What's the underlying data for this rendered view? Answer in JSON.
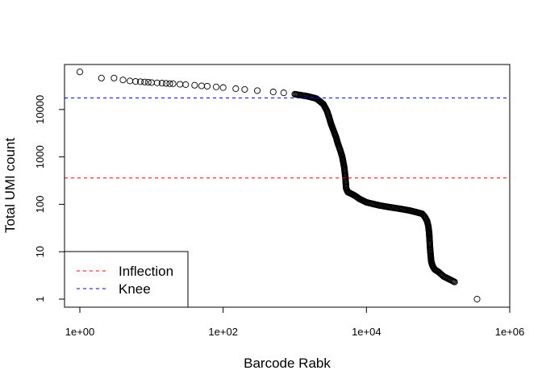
{
  "chart_data": {
    "type": "scatter",
    "xlabel": "Barcode Rabk",
    "ylabel": "Total UMI count",
    "x_scale": "log",
    "y_scale": "log",
    "xlim": [
      1,
      1000000
    ],
    "ylim": [
      0.75,
      100000
    ],
    "x_ticks": [
      1,
      100,
      10000,
      1000000
    ],
    "x_tick_labels": [
      "1e+00",
      "1e+02",
      "1e+04",
      "1e+06"
    ],
    "y_ticks": [
      1,
      10,
      100,
      1000,
      10000
    ],
    "y_tick_labels": [
      "1",
      "10",
      "100",
      "1000",
      "10000"
    ],
    "grid": false,
    "marker": "open-circle",
    "point_color": "#000000",
    "points": [
      [
        1,
        62000
      ],
      [
        2,
        46000
      ],
      [
        3,
        46000
      ],
      [
        4,
        42000
      ],
      [
        5,
        40000
      ],
      [
        6,
        39000
      ],
      [
        7,
        38500
      ],
      [
        8,
        38000
      ],
      [
        9,
        37500
      ],
      [
        10,
        37000
      ],
      [
        12,
        36500
      ],
      [
        14,
        36000
      ],
      [
        16,
        35500
      ],
      [
        18,
        35000
      ],
      [
        20,
        35000
      ],
      [
        25,
        34000
      ],
      [
        30,
        33500
      ],
      [
        40,
        32500
      ],
      [
        50,
        31500
      ],
      [
        60,
        31000
      ],
      [
        80,
        30000
      ],
      [
        100,
        29000
      ],
      [
        150,
        27500
      ],
      [
        200,
        26500
      ],
      [
        300,
        25000
      ],
      [
        500,
        23500
      ],
      [
        700,
        22500
      ],
      [
        1000,
        21000
      ],
      [
        1500,
        19000
      ],
      [
        2000,
        17000
      ],
      [
        2500,
        13000
      ],
      [
        2800,
        9500
      ],
      [
        3000,
        7000
      ],
      [
        3200,
        5000
      ],
      [
        3500,
        3500
      ],
      [
        3800,
        2500
      ],
      [
        4000,
        1900
      ],
      [
        4300,
        1400
      ],
      [
        4600,
        1000
      ],
      [
        4900,
        600
      ],
      [
        5100,
        350
      ],
      [
        5200,
        220
      ],
      [
        5500,
        180
      ],
      [
        6000,
        170
      ],
      [
        7000,
        150
      ],
      [
        8000,
        130
      ],
      [
        10000,
        110
      ],
      [
        15000,
        95
      ],
      [
        20000,
        88
      ],
      [
        30000,
        80
      ],
      [
        40000,
        74
      ],
      [
        50000,
        68
      ],
      [
        60000,
        63
      ],
      [
        65000,
        55
      ],
      [
        70000,
        45
      ],
      [
        73000,
        35
      ],
      [
        75000,
        25
      ],
      [
        76000,
        18
      ],
      [
        77000,
        13
      ],
      [
        78000,
        10
      ],
      [
        79000,
        8
      ],
      [
        80000,
        6.5
      ],
      [
        82000,
        5.5
      ],
      [
        85000,
        4.8
      ],
      [
        90000,
        4.2
      ],
      [
        100000,
        3.8
      ],
      [
        120000,
        3.0
      ],
      [
        170000,
        2.3
      ],
      [
        350000,
        1.0
      ]
    ],
    "hlines": [
      {
        "name": "Inflection",
        "value": 360,
        "color": "#ff0000",
        "style": "dashed"
      },
      {
        "name": "Knee",
        "value": 17500,
        "color": "#0000ff",
        "style": "dashed"
      }
    ],
    "legend": {
      "position": "bottom-left",
      "entries": [
        {
          "label": "Inflection",
          "color": "#ff0000"
        },
        {
          "label": "Knee",
          "color": "#0000ff"
        }
      ]
    }
  }
}
